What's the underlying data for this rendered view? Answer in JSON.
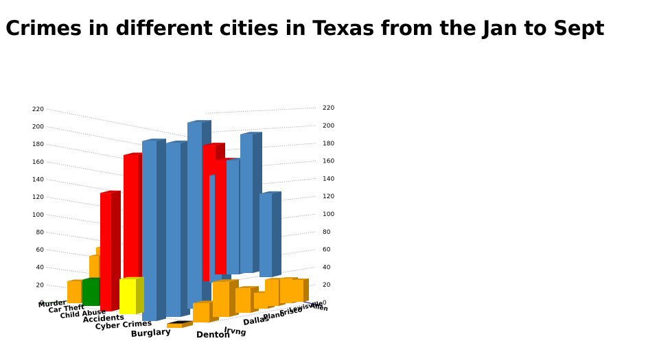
{
  "chart_data": {
    "type": "bar",
    "title": "Crimes in different cities in Texas from the Jan to Sept",
    "xlabel": "",
    "ylabel": "",
    "ylim": [
      0,
      220
    ],
    "yticks": [
      0,
      20,
      40,
      60,
      80,
      100,
      120,
      140,
      160,
      180,
      200,
      220
    ],
    "categories_front": [
      "Murder",
      "Car Theft",
      "Child Abuse",
      "Accidents",
      "Cyber Crimes",
      "Burglary"
    ],
    "categories_depth": [
      "Denton",
      "Irvng",
      "Dallas",
      "Plano",
      "Frisco",
      "Lewisville",
      "Allen"
    ],
    "grid": true,
    "legend": "none",
    "bars": [
      {
        "category": "Murder",
        "value": 25,
        "color": "#ffaa00"
      },
      {
        "category": "Car Theft",
        "value": 35,
        "color": "#ffaa00"
      },
      {
        "category": "Child Abuse",
        "value": 30,
        "color": "#008800"
      },
      {
        "category": "Accidents",
        "value": 135,
        "color": "#ff0000"
      },
      {
        "category": "Cyber Crimes",
        "value": 40,
        "color": "#ffff00"
      },
      {
        "category": "Burglary",
        "value": 5,
        "color": "#ffaa00"
      },
      {
        "category": "Denton",
        "value": 22,
        "color": "#ffaa00"
      },
      {
        "category": "Irvng",
        "value": 40,
        "color": "#ffaa00"
      },
      {
        "category": "Dallas",
        "value": 28,
        "color": "#ffaa00"
      },
      {
        "category": "Plano",
        "value": 18,
        "color": "#ffaa00"
      },
      {
        "category": "Frisco",
        "value": 30,
        "color": "#ffaa00"
      },
      {
        "category": "Lewisville",
        "value": 28,
        "color": "#ffaa00"
      },
      {
        "category": "Allen",
        "value": 25,
        "color": "#ffaa00"
      }
    ],
    "back_bars": [
      {
        "value": 175,
        "color": "#ff0000"
      },
      {
        "value": 205,
        "color": "#4a88c4"
      },
      {
        "value": 198,
        "color": "#4a88c4"
      },
      {
        "value": 212,
        "color": "#4a88c4"
      },
      {
        "value": 155,
        "color": "#ff0000"
      },
      {
        "value": 122,
        "color": "#4a88c4"
      },
      {
        "value": 130,
        "color": "#ff0000"
      },
      {
        "value": 130,
        "color": "#4a88c4"
      },
      {
        "value": 158,
        "color": "#4a88c4"
      },
      {
        "value": 95,
        "color": "#4a88c4"
      },
      {
        "value": 40,
        "color": "#ffaa00"
      }
    ]
  }
}
